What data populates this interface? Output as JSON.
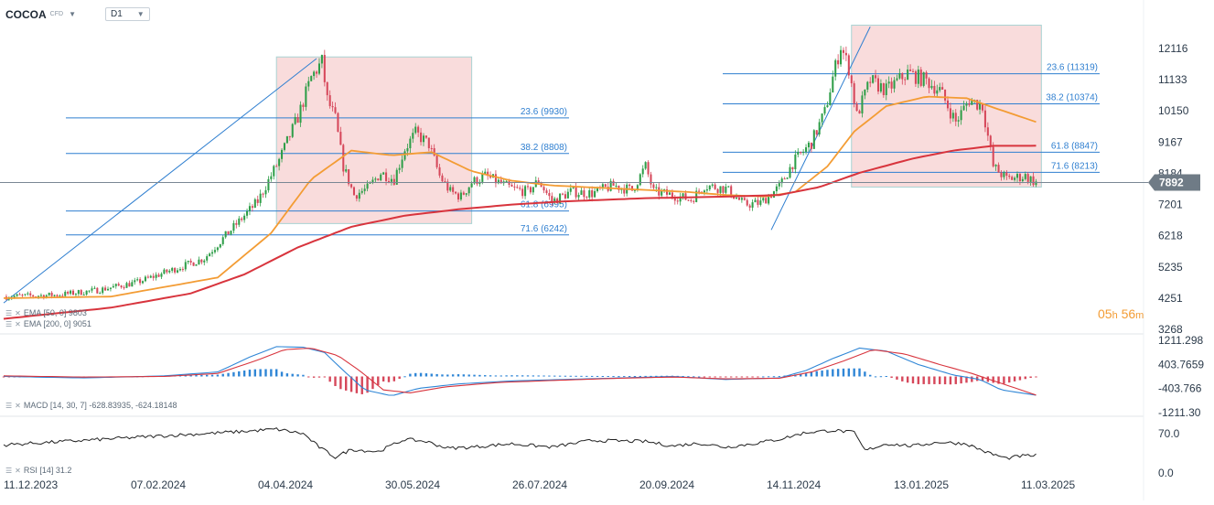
{
  "header": {
    "symbol": "COCOA",
    "symbol_sub": "CFD",
    "timeframe": "D1",
    "dropdown_icon": "chevron-down-icon"
  },
  "countdown": {
    "hours": "05",
    "hours_unit": "h",
    "minutes": "56",
    "minutes_unit": "m"
  },
  "colors": {
    "up": "#2e9e48",
    "down": "#d6475a",
    "ema50": "#f39c34",
    "ema200": "#d8343d",
    "fib": "#2f7fd0",
    "box": "#f8d6d6",
    "macd": "#2f86d6",
    "signal": "#d8343d",
    "rsi": "#1f1f1f"
  },
  "indicators": {
    "ema50_label": "EMA [50, 0] 9803",
    "ema200_label": "EMA [200, 0] 9051",
    "macd_label": "MACD [14, 30, 7] -628.83935, -624.18148",
    "rsi_label": "RSI [14] 31.2"
  },
  "chart_data": {
    "type": "candlestick",
    "price_axis": {
      "ticks": [
        "12116",
        "11133",
        "10150",
        "9167",
        "8184",
        "7201",
        "6218",
        "5235",
        "4251",
        "3268"
      ],
      "current_price": "7892"
    },
    "x_ticks": [
      "11.12.2023",
      "07.02.2024",
      "04.04.2024",
      "30.05.2024",
      "26.07.2024",
      "20.09.2024",
      "14.11.2024",
      "13.01.2025",
      "11.03.2025"
    ],
    "close_path": [
      [
        0,
        4300
      ],
      [
        20,
        4350
      ],
      [
        35,
        4500
      ],
      [
        50,
        4750
      ],
      [
        60,
        5050
      ],
      [
        75,
        5500
      ],
      [
        85,
        6400
      ],
      [
        95,
        7300
      ],
      [
        103,
        8600
      ],
      [
        110,
        9950
      ],
      [
        115,
        11200
      ],
      [
        119,
        11700
      ],
      [
        121,
        10500
      ],
      [
        124,
        9900
      ],
      [
        127,
        8400
      ],
      [
        131,
        7500
      ],
      [
        136,
        7700
      ],
      [
        141,
        8200
      ],
      [
        146,
        8000
      ],
      [
        150,
        8950
      ],
      [
        154,
        9450
      ],
      [
        159,
        9100
      ],
      [
        163,
        8100
      ],
      [
        167,
        7600
      ],
      [
        171,
        7450
      ],
      [
        175,
        7900
      ],
      [
        180,
        8100
      ],
      [
        185,
        7900
      ],
      [
        190,
        7700
      ],
      [
        196,
        7600
      ],
      [
        200,
        7950
      ],
      [
        205,
        7300
      ],
      [
        212,
        7600
      ],
      [
        220,
        7550
      ],
      [
        228,
        7800
      ],
      [
        235,
        7650
      ],
      [
        240,
        8400
      ],
      [
        243,
        7600
      ],
      [
        250,
        7500
      ],
      [
        257,
        7350
      ],
      [
        262,
        7800
      ],
      [
        270,
        7700
      ],
      [
        277,
        7200
      ],
      [
        283,
        7250
      ],
      [
        290,
        7750
      ],
      [
        295,
        8500
      ],
      [
        302,
        9150
      ],
      [
        307,
        10100
      ],
      [
        310,
        11200
      ],
      [
        313,
        12200
      ],
      [
        316,
        11500
      ],
      [
        319,
        10000
      ],
      [
        324,
        11100
      ],
      [
        330,
        10800
      ],
      [
        338,
        11350
      ],
      [
        345,
        11100
      ],
      [
        350,
        10800
      ],
      [
        356,
        9800
      ],
      [
        361,
        10500
      ],
      [
        366,
        10300
      ],
      [
        370,
        8400
      ],
      [
        375,
        8000
      ],
      [
        382,
        8100
      ],
      [
        386,
        7892
      ]
    ],
    "ema50_path": [
      [
        0,
        4250
      ],
      [
        40,
        4300
      ],
      [
        80,
        4900
      ],
      [
        100,
        6300
      ],
      [
        115,
        8000
      ],
      [
        130,
        8900
      ],
      [
        145,
        8750
      ],
      [
        160,
        8850
      ],
      [
        175,
        8250
      ],
      [
        190,
        7950
      ],
      [
        205,
        7800
      ],
      [
        230,
        7700
      ],
      [
        255,
        7600
      ],
      [
        270,
        7500
      ],
      [
        285,
        7450
      ],
      [
        296,
        7600
      ],
      [
        308,
        8400
      ],
      [
        318,
        9500
      ],
      [
        330,
        10300
      ],
      [
        345,
        10600
      ],
      [
        360,
        10550
      ],
      [
        372,
        10200
      ],
      [
        386,
        9803
      ]
    ],
    "ema200_path": [
      [
        0,
        3600
      ],
      [
        40,
        3950
      ],
      [
        70,
        4400
      ],
      [
        90,
        5000
      ],
      [
        110,
        5850
      ],
      [
        130,
        6500
      ],
      [
        150,
        6850
      ],
      [
        170,
        7050
      ],
      [
        190,
        7200
      ],
      [
        210,
        7300
      ],
      [
        240,
        7400
      ],
      [
        270,
        7450
      ],
      [
        290,
        7500
      ],
      [
        305,
        7750
      ],
      [
        320,
        8200
      ],
      [
        340,
        8650
      ],
      [
        355,
        8900
      ],
      [
        370,
        9050
      ],
      [
        386,
        9051
      ]
    ],
    "fib_left": {
      "levels": [
        {
          "label": "23.6 (9930)",
          "value": 9930
        },
        {
          "label": "38.2 (8808)",
          "value": 8808
        },
        {
          "label": "61.8 (6995)",
          "value": 6995
        },
        {
          "label": "71.6 (6242)",
          "value": 6242
        }
      ],
      "trend_from": [
        0,
        4100
      ],
      "trend_to": [
        117,
        11800
      ]
    },
    "fib_right": {
      "levels": [
        {
          "label": "23.6 (11319)",
          "value": 11319
        },
        {
          "label": "38.2 (10374)",
          "value": 10374
        },
        {
          "label": "61.8 (8847)",
          "value": 8847
        },
        {
          "label": "71.6 (8213)",
          "value": 8213
        }
      ],
      "trend_from": [
        287,
        6400
      ],
      "trend_to": [
        324,
        12800
      ]
    },
    "macd_axis": {
      "ticks": [
        "1211.298",
        "403.7659",
        "-403.766",
        "-1211.30"
      ]
    },
    "macd_path": [
      [
        0,
        0
      ],
      [
        30,
        -50
      ],
      [
        60,
        20
      ],
      [
        80,
        150
      ],
      [
        92,
        650
      ],
      [
        102,
        1000
      ],
      [
        112,
        980
      ],
      [
        120,
        800
      ],
      [
        127,
        200
      ],
      [
        135,
        -450
      ],
      [
        145,
        -650
      ],
      [
        155,
        -400
      ],
      [
        170,
        -250
      ],
      [
        190,
        -150
      ],
      [
        210,
        -100
      ],
      [
        230,
        -50
      ],
      [
        250,
        0
      ],
      [
        270,
        -100
      ],
      [
        290,
        -50
      ],
      [
        300,
        200
      ],
      [
        310,
        600
      ],
      [
        320,
        950
      ],
      [
        330,
        850
      ],
      [
        342,
        400
      ],
      [
        355,
        50
      ],
      [
        365,
        -100
      ],
      [
        373,
        -450
      ],
      [
        386,
        -629
      ]
    ],
    "signal_path": [
      [
        0,
        20
      ],
      [
        30,
        -20
      ],
      [
        60,
        0
      ],
      [
        80,
        100
      ],
      [
        95,
        550
      ],
      [
        105,
        900
      ],
      [
        115,
        950
      ],
      [
        125,
        700
      ],
      [
        133,
        200
      ],
      [
        142,
        -450
      ],
      [
        152,
        -550
      ],
      [
        165,
        -350
      ],
      [
        185,
        -200
      ],
      [
        210,
        -120
      ],
      [
        230,
        -60
      ],
      [
        250,
        -20
      ],
      [
        270,
        -80
      ],
      [
        290,
        -60
      ],
      [
        302,
        150
      ],
      [
        315,
        550
      ],
      [
        325,
        900
      ],
      [
        337,
        750
      ],
      [
        350,
        400
      ],
      [
        362,
        100
      ],
      [
        372,
        -200
      ],
      [
        386,
        -624
      ]
    ],
    "rsi_axis": {
      "ticks": [
        "70.0",
        "0.0"
      ]
    },
    "rsi_path": [
      [
        0,
        50
      ],
      [
        30,
        58
      ],
      [
        55,
        65
      ],
      [
        75,
        70
      ],
      [
        90,
        74
      ],
      [
        102,
        78
      ],
      [
        112,
        70
      ],
      [
        118,
        46
      ],
      [
        124,
        28
      ],
      [
        130,
        42
      ],
      [
        140,
        38
      ],
      [
        150,
        60
      ],
      [
        158,
        56
      ],
      [
        166,
        44
      ],
      [
        175,
        46
      ],
      [
        190,
        52
      ],
      [
        205,
        46
      ],
      [
        220,
        58
      ],
      [
        240,
        56
      ],
      [
        250,
        48
      ],
      [
        260,
        53
      ],
      [
        270,
        46
      ],
      [
        280,
        52
      ],
      [
        290,
        60
      ],
      [
        300,
        72
      ],
      [
        310,
        76
      ],
      [
        318,
        72
      ],
      [
        322,
        40
      ],
      [
        330,
        52
      ],
      [
        340,
        48
      ],
      [
        350,
        55
      ],
      [
        360,
        52
      ],
      [
        368,
        36
      ],
      [
        375,
        26
      ],
      [
        380,
        30
      ],
      [
        386,
        31.2
      ]
    ]
  }
}
